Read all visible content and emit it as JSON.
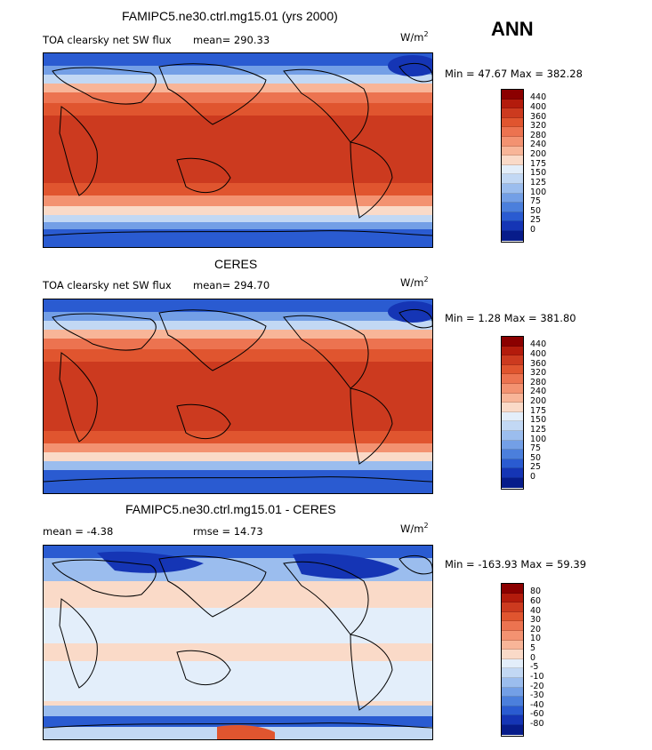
{
  "header": {
    "season": "ANN",
    "unit_prefix": "W/m",
    "unit_sup": "2"
  },
  "panels": [
    {
      "title": "FAMIPC5.ne30.ctrl.mg15.01 (yrs 2000)",
      "variable": "TOA clearsky net SW flux",
      "mean_text": "mean= 290.33",
      "minmax_text": "Min =  47.67 Max = 382.28",
      "colorbar_labels": [
        "440",
        "400",
        "360",
        "320",
        "280",
        "240",
        "200",
        "175",
        "150",
        "125",
        "100",
        "75",
        "50",
        "25",
        "0"
      ]
    },
    {
      "title": "CERES",
      "variable": "TOA clearsky net SW flux",
      "mean_text": "mean= 294.70",
      "minmax_text": "Min =   1.28 Max = 381.80",
      "colorbar_labels": [
        "440",
        "400",
        "360",
        "320",
        "280",
        "240",
        "200",
        "175",
        "150",
        "125",
        "100",
        "75",
        "50",
        "25",
        "0"
      ]
    },
    {
      "title": "FAMIPC5.ne30.ctrl.mg15.01 - CERES",
      "mean_text": "mean =   -4.38",
      "rmse_text": "rmse =   14.73",
      "minmax_text": "Min = -163.93 Max =  59.39",
      "colorbar_labels": [
        "80",
        "60",
        "40",
        "30",
        "20",
        "10",
        "5",
        "0",
        "-5",
        "-10",
        "-20",
        "-30",
        "-40",
        "-60",
        "-80"
      ]
    }
  ],
  "colors": {
    "scale": [
      "#8b0000",
      "#b31b0c",
      "#cc3a1f",
      "#e0552f",
      "#ec7350",
      "#f39271",
      "#f8b598",
      "#fadac8",
      "#e3eefa",
      "#c2d8f4",
      "#9bbdee",
      "#739fe6",
      "#4b7fdc",
      "#2a5bd1",
      "#1535b5",
      "#071c8a"
    ]
  }
}
